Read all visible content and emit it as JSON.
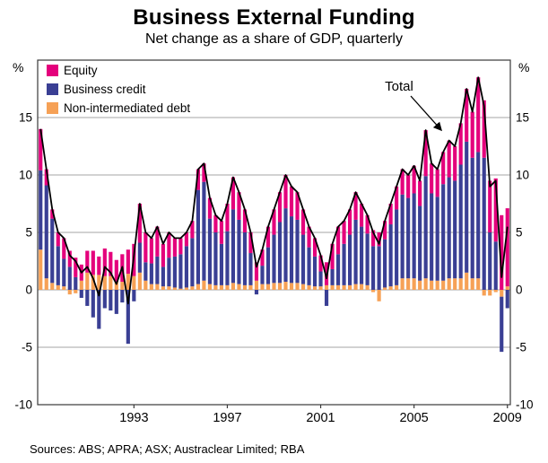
{
  "chart_data": {
    "type": "bar",
    "subtype": "stacked-bar-with-total-line",
    "title": "Business External Funding",
    "subtitle": "Net change as a share of GDP, quarterly",
    "y_unit": "%",
    "ylim": [
      -10,
      20
    ],
    "yticks": [
      -10,
      -5,
      0,
      5,
      10,
      15
    ],
    "x_axis": {
      "start": "1989Q1",
      "end": "2009Q1",
      "frequency": "quarterly",
      "start_year": 1989,
      "tick_labels": [
        "1993",
        "1997",
        "2001",
        "2005",
        "2009"
      ]
    },
    "legend_position": "top-left",
    "annotation": {
      "text": "Total"
    },
    "total_line": {
      "name": "Total",
      "color": "#000000",
      "derived": "sum of stacked series"
    },
    "series": [
      {
        "name": "Equity",
        "color": "#E4007C",
        "values": [
          3.6,
          1.4,
          0.8,
          1.2,
          1.8,
          1.4,
          1.7,
          1.4,
          1.9,
          2.1,
          1.6,
          2.4,
          2.1,
          1.9,
          2.4,
          2.1,
          2.8,
          3.4,
          2.6,
          2.2,
          2.6,
          2.0,
          2.2,
          1.6,
          1.4,
          1.2,
          1.5,
          1.8,
          1.6,
          1.8,
          1.5,
          2.0,
          2.4,
          2.8,
          2.4,
          2.0,
          1.8,
          1.6,
          1.4,
          1.8,
          2.2,
          2.6,
          2.9,
          2.6,
          2.4,
          2.2,
          1.8,
          1.6,
          1.4,
          2.0,
          2.2,
          2.4,
          2.0,
          2.2,
          2.4,
          2.0,
          1.6,
          1.4,
          1.2,
          1.6,
          1.8,
          2.0,
          2.2,
          2.0,
          2.4,
          2.2,
          4.0,
          2.6,
          2.4,
          2.8,
          3.2,
          3.0,
          3.6,
          4.6,
          4.0,
          6.5,
          5.0,
          4.5,
          5.5,
          6.5,
          6.8
        ]
      },
      {
        "name": "Business credit",
        "color": "#3A3F94",
        "values": [
          6.9,
          8.1,
          5.6,
          3.4,
          2.4,
          2.0,
          1.1,
          -0.7,
          -1.4,
          -2.4,
          -3.4,
          -1.6,
          -1.8,
          -2.1,
          -1.1,
          -4.7,
          -1.0,
          2.6,
          1.6,
          1.8,
          2.4,
          1.7,
          2.5,
          2.7,
          3.0,
          3.6,
          4.2,
          8.2,
          8.6,
          5.7,
          4.6,
          3.6,
          4.7,
          6.4,
          5.6,
          4.6,
          2.8,
          -0.4,
          1.6,
          3.2,
          4.2,
          5.3,
          6.4,
          5.8,
          5.5,
          4.3,
          3.3,
          2.6,
          1.3,
          -1.4,
          1.4,
          2.7,
          3.6,
          4.4,
          5.6,
          5.0,
          4.5,
          3.8,
          3.8,
          4.2,
          5.4,
          6.6,
          7.3,
          7.0,
          7.4,
          6.5,
          8.9,
          7.6,
          7.3,
          8.4,
          8.8,
          8.5,
          9.9,
          11.4,
          10.5,
          11.0,
          11.5,
          5.0,
          4.2,
          -4.8,
          -1.6
        ]
      },
      {
        "name": "Non-intermediated debt",
        "color": "#F6A156",
        "values": [
          3.5,
          1.0,
          0.6,
          0.4,
          0.3,
          -0.4,
          -0.3,
          0.8,
          1.5,
          1.3,
          1.3,
          1.2,
          1.2,
          0.7,
          0.7,
          1.4,
          1.2,
          1.5,
          0.8,
          0.5,
          0.5,
          0.3,
          0.3,
          0.2,
          0.1,
          0.2,
          0.3,
          0.5,
          0.8,
          0.5,
          0.4,
          0.4,
          0.4,
          0.6,
          0.5,
          0.4,
          0.4,
          0.8,
          0.5,
          0.5,
          0.6,
          0.6,
          0.7,
          0.6,
          0.6,
          0.5,
          0.4,
          0.3,
          0.3,
          0.4,
          0.4,
          0.4,
          0.4,
          0.4,
          0.5,
          0.5,
          0.4,
          -0.2,
          -1.0,
          0.2,
          0.3,
          0.4,
          1.0,
          1.0,
          1.0,
          0.8,
          1.0,
          0.8,
          0.8,
          0.8,
          1.0,
          1.0,
          1.0,
          1.5,
          1.0,
          1.0,
          -0.5,
          -0.5,
          -0.2,
          -0.6,
          0.3
        ]
      }
    ],
    "sources": "Sources: ABS; APRA; ASX; Austraclear Limited; RBA"
  }
}
